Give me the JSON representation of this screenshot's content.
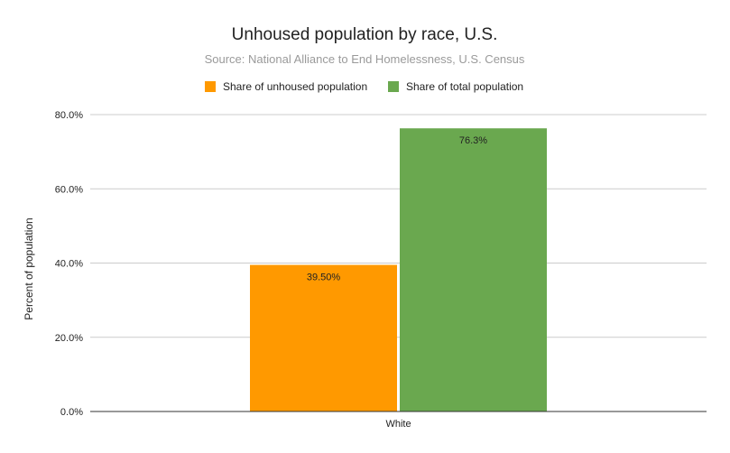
{
  "chart_data": {
    "type": "bar",
    "title": "Unhoused population by race, U.S.",
    "subtitle": "Source: National Alliance to End Homelessness, U.S. Census",
    "xlabel": "",
    "ylabel": "Percent of population",
    "categories": [
      "White"
    ],
    "series": [
      {
        "name": "Share of unhoused population",
        "values": [
          39.5
        ],
        "label": "39.50%",
        "color": "#ff9900"
      },
      {
        "name": "Share of total population",
        "values": [
          76.3
        ],
        "label": "76.3%",
        "color": "#6aa84f"
      }
    ],
    "ylim": [
      0,
      80
    ],
    "yticks": [
      {
        "value": 0,
        "label": "0.0%"
      },
      {
        "value": 20,
        "label": "20.0%"
      },
      {
        "value": 40,
        "label": "40.0%"
      },
      {
        "value": 60,
        "label": "60.0%"
      },
      {
        "value": 80,
        "label": "80.0%"
      }
    ],
    "legend_position": "top",
    "grid": true
  }
}
